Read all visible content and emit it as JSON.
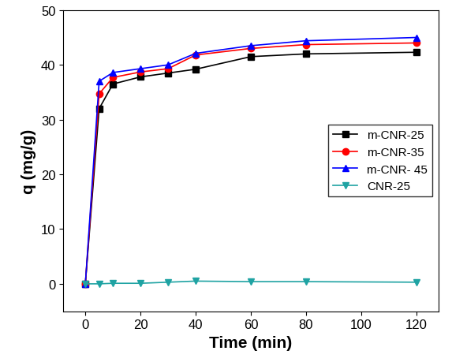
{
  "chart_data": {
    "type": "line",
    "x_label": "Time (min)",
    "y_label": "q (mg/g)",
    "x": [
      0,
      5,
      10,
      20,
      30,
      40,
      60,
      80,
      120
    ],
    "series": [
      {
        "name": "m-CNR-25",
        "color": "#000000",
        "marker": "square",
        "values": [
          0,
          32.0,
          36.5,
          37.8,
          38.5,
          39.2,
          41.5,
          42.0,
          42.3
        ]
      },
      {
        "name": "m-CNR-35",
        "color": "#ff0000",
        "marker": "circle",
        "values": [
          0,
          34.7,
          37.7,
          38.7,
          39.3,
          41.8,
          43.0,
          43.7,
          44.0
        ]
      },
      {
        "name": "m-CNR- 45",
        "color": "#0000ff",
        "marker": "triangle_up",
        "values": [
          0,
          37.0,
          38.6,
          39.3,
          40.0,
          42.1,
          43.5,
          44.4,
          45.0
        ]
      },
      {
        "name": "CNR-25",
        "color": "#1fa3a3",
        "marker": "triangle_down",
        "values": [
          0,
          0,
          0.1,
          0.1,
          0.3,
          0.5,
          0.4,
          0.4,
          0.3
        ]
      }
    ],
    "xlim": [
      -8,
      128
    ],
    "ylim": [
      -5,
      50
    ],
    "xticks": [
      0,
      20,
      40,
      60,
      80,
      100,
      120
    ],
    "yticks": [
      0,
      10,
      20,
      30,
      40,
      50
    ],
    "legend": "center right",
    "grid": false
  }
}
